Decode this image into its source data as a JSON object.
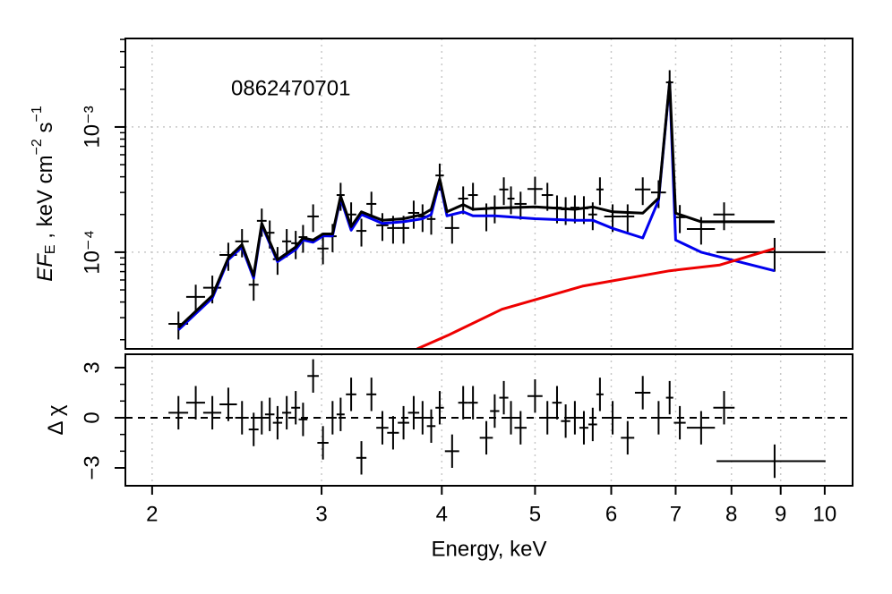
{
  "chart_data": [
    {
      "type": "errorbar",
      "annotation": "0862470701",
      "ylabel": [
        "EF",
        "E",
        " , keV cm",
        "−2",
        " s",
        "−1"
      ],
      "xlog": true,
      "ylog": true,
      "grid": true,
      "xlim": [
        1.876,
        10.69
      ],
      "ylim": [
        1.69e-05,
        0.00509
      ],
      "xticks": [
        2,
        3,
        4,
        5,
        6,
        7,
        8,
        9,
        10
      ],
      "yticks": [
        {
          "value": 0.001,
          "label": "10⁻³"
        },
        {
          "value": 0.0001,
          "label": "10⁻⁴"
        }
      ],
      "yminorticks": [
        2e-05,
        3e-05,
        4e-05,
        5e-05,
        6e-05,
        7e-05,
        8e-05,
        9e-05,
        0.0002,
        0.0003,
        0.0004,
        0.0005,
        0.0006,
        0.0007,
        0.0008,
        0.0009,
        0.002,
        0.003,
        0.004,
        0.005
      ],
      "series": [
        {
          "style": "errorbar",
          "color": "#000000",
          "x": [
            2.13,
            2.22,
            2.31,
            2.4,
            2.48,
            2.55,
            2.6,
            2.65,
            2.7,
            2.76,
            2.82,
            2.87,
            2.94,
            3.01,
            3.08,
            3.14,
            3.22,
            3.3,
            3.38,
            3.47,
            3.56,
            3.65,
            3.74,
            3.82,
            3.9,
            3.98,
            4.1,
            4.21,
            4.31,
            4.45,
            4.54,
            4.64,
            4.72,
            4.83,
            5.0,
            5.15,
            5.27,
            5.38,
            5.5,
            5.62,
            5.74,
            5.84,
            6.02,
            6.24,
            6.47,
            6.72,
            6.9,
            7.07,
            7.44,
            7.86,
            8.87
          ],
          "xerr": [
            0.05,
            0.05,
            0.05,
            0.05,
            0.04,
            0.03,
            0.03,
            0.03,
            0.03,
            0.03,
            0.03,
            0.03,
            0.04,
            0.04,
            0.03,
            0.03,
            0.04,
            0.04,
            0.04,
            0.05,
            0.05,
            0.05,
            0.05,
            0.04,
            0.04,
            0.04,
            0.07,
            0.05,
            0.05,
            0.07,
            0.05,
            0.05,
            0.04,
            0.07,
            0.09,
            0.07,
            0.06,
            0.06,
            0.06,
            0.06,
            0.06,
            0.05,
            0.12,
            0.1,
            0.12,
            0.12,
            0.06,
            0.1,
            0.25,
            0.2,
            1.15
          ],
          "values": [
            2.68e-05,
            4.4e-05,
            5.2e-05,
            9.5e-05,
            0.000122,
            5.5e-05,
            0.000178,
            0.000143,
            8.8e-05,
            0.000122,
            0.000118,
            0.000132,
            0.000193,
            0.000107,
            0.000134,
            0.000286,
            0.0002,
            0.000148,
            0.000243,
            0.000164,
            0.000156,
            0.000156,
            0.000206,
            0.000193,
            0.000184,
            0.00041,
            0.000156,
            0.000268,
            0.000286,
            0.000196,
            0.000227,
            0.000317,
            0.000268,
            0.000243,
            0.00032,
            0.000286,
            0.000227,
            0.00022,
            0.000227,
            0.000224,
            0.0002,
            0.000317,
            0.000193,
            0.000193,
            0.000317,
            0.0003,
            0.00227,
            0.00019,
            0.000153,
            0.0002,
            0.0001
          ],
          "yerr": [
            6.7e-06,
            1.1e-05,
            1.3e-05,
            2.4e-05,
            3.1e-05,
            1.4e-05,
            4.5e-05,
            3.6e-05,
            2.2e-05,
            3.1e-05,
            3e-05,
            3.3e-05,
            4.8e-05,
            2.7e-05,
            3.4e-05,
            7.2e-05,
            5e-05,
            3.7e-05,
            6.1e-05,
            4.1e-05,
            3.9e-05,
            3.9e-05,
            5.2e-05,
            4.8e-05,
            4.6e-05,
            0.0001,
            3.9e-05,
            6.7e-05,
            7.2e-05,
            4.9e-05,
            5.7e-05,
            7.9e-05,
            6.7e-05,
            6.1e-05,
            8e-05,
            7.2e-05,
            5.7e-05,
            5.5e-05,
            5.7e-05,
            5.6e-05,
            5e-05,
            7.9e-05,
            4.8e-05,
            4.8e-05,
            7.9e-05,
            7.5e-05,
            0.00057,
            4.8e-05,
            3.8e-05,
            5e-05,
            3e-05
          ]
        },
        {
          "style": "line",
          "color": "#0000ee",
          "x": [
            2.13,
            2.31,
            2.4,
            2.48,
            2.55,
            2.6,
            2.7,
            2.82,
            2.87,
            2.94,
            3.01,
            3.08,
            3.14,
            3.22,
            3.3,
            3.38,
            3.47,
            3.65,
            3.82,
            3.9,
            3.98,
            4.05,
            4.21,
            4.31,
            4.54,
            5.0,
            5.5,
            5.74,
            6.02,
            6.47,
            6.72,
            6.9,
            7.0,
            7.44,
            8.87
          ],
          "values": [
            2.4e-05,
            4.3e-05,
            8.7e-05,
            0.00011,
            6.2e-05,
            0.000165,
            8.4e-05,
            0.000105,
            0.000125,
            0.00012,
            0.000135,
            0.000135,
            0.00027,
            0.00015,
            0.0002,
            0.000185,
            0.00017,
            0.000175,
            0.000185,
            0.0002,
            0.00037,
            0.000195,
            0.00021,
            0.000195,
            0.000195,
            0.000185,
            0.00018,
            0.00018,
            0.000155,
            0.00013,
            0.00026,
            0.00225,
            0.000125,
            0.0001,
            7.1e-05
          ]
        },
        {
          "style": "line",
          "color": "#ee0000",
          "x": [
            3.77,
            4.06,
            4.62,
            5.6,
            6.9,
            7.78,
            8.87
          ],
          "values": [
            1.69e-05,
            2.17e-05,
            3.5e-05,
            5.35e-05,
            7.1e-05,
            7.9e-05,
            0.000107
          ]
        },
        {
          "style": "line",
          "color": "#000000",
          "x": [
            2.13,
            2.31,
            2.4,
            2.48,
            2.55,
            2.6,
            2.7,
            2.82,
            2.87,
            2.94,
            3.01,
            3.08,
            3.14,
            3.22,
            3.3,
            3.38,
            3.47,
            3.65,
            3.82,
            3.9,
            3.98,
            4.05,
            4.21,
            4.31,
            4.54,
            5.0,
            5.5,
            5.74,
            6.02,
            6.47,
            6.72,
            6.9,
            7.0,
            7.44,
            8.87
          ],
          "values": [
            2.5e-05,
            4.5e-05,
            9e-05,
            0.000115,
            6.5e-05,
            0.00017,
            8.7e-05,
            0.00011,
            0.00013,
            0.000125,
            0.00014,
            0.00014,
            0.00028,
            0.00016,
            0.00021,
            0.000195,
            0.00018,
            0.000185,
            0.0002,
            0.00022,
            0.000385,
            0.00021,
            0.00024,
            0.00022,
            0.000225,
            0.00023,
            0.00022,
            0.00023,
            0.00021,
            0.000205,
            0.00027,
            0.0023,
            0.000205,
            0.000175,
            0.000175
          ]
        }
      ]
    },
    {
      "type": "errorbar",
      "xlabel": "Energy, keV",
      "ylabel": [
        "Δ χ"
      ],
      "xlog": true,
      "ylog": false,
      "grid": true,
      "xlim": [
        1.876,
        10.69
      ],
      "ylim": [
        -4.07,
        3.8
      ],
      "xticks": [
        2,
        3,
        4,
        5,
        6,
        7,
        8,
        9,
        10
      ],
      "yticks": [
        {
          "value": -3,
          "label": "−3"
        },
        0,
        3
      ],
      "yminorticks": [
        -2,
        -1,
        1,
        2
      ],
      "reference_line": 0,
      "series": [
        {
          "style": "errorbar",
          "color": "#000000",
          "x": [
            2.13,
            2.22,
            2.31,
            2.4,
            2.48,
            2.55,
            2.6,
            2.65,
            2.7,
            2.76,
            2.82,
            2.87,
            2.94,
            3.01,
            3.08,
            3.14,
            3.22,
            3.3,
            3.38,
            3.47,
            3.56,
            3.65,
            3.74,
            3.82,
            3.9,
            3.98,
            4.1,
            4.21,
            4.31,
            4.45,
            4.54,
            4.64,
            4.72,
            4.83,
            5.0,
            5.15,
            5.27,
            5.38,
            5.5,
            5.62,
            5.74,
            5.84,
            6.02,
            6.24,
            6.47,
            6.72,
            6.9,
            7.07,
            7.44,
            7.86,
            8.87
          ],
          "xerr": [
            0.05,
            0.05,
            0.05,
            0.05,
            0.04,
            0.03,
            0.03,
            0.03,
            0.03,
            0.03,
            0.03,
            0.03,
            0.04,
            0.04,
            0.03,
            0.03,
            0.04,
            0.04,
            0.04,
            0.05,
            0.05,
            0.05,
            0.05,
            0.04,
            0.04,
            0.04,
            0.07,
            0.05,
            0.05,
            0.07,
            0.05,
            0.05,
            0.04,
            0.07,
            0.09,
            0.07,
            0.06,
            0.06,
            0.06,
            0.06,
            0.06,
            0.05,
            0.12,
            0.1,
            0.12,
            0.12,
            0.06,
            0.1,
            0.25,
            0.2,
            1.15
          ],
          "values": [
            0.3,
            0.9,
            0.3,
            0.8,
            0.0,
            -0.7,
            0.0,
            0.2,
            -0.3,
            0.3,
            0.6,
            -0.1,
            2.5,
            -1.5,
            0.0,
            0.2,
            1.4,
            -2.4,
            1.4,
            -0.6,
            -0.9,
            -0.3,
            0.3,
            0.0,
            -0.5,
            0.6,
            -2.0,
            0.9,
            0.9,
            -1.2,
            0.4,
            1.2,
            0.0,
            -0.6,
            1.3,
            0.0,
            0.9,
            -0.2,
            0.0,
            -0.6,
            -0.4,
            1.4,
            0.0,
            -1.2,
            1.5,
            0.0,
            1.2,
            -0.3,
            -0.6,
            0.6,
            -2.6
          ],
          "yerr": [
            1,
            1,
            1,
            1,
            1,
            1,
            1,
            1,
            1,
            1,
            1,
            1,
            1,
            1,
            1,
            1,
            1,
            1,
            1,
            1,
            1,
            1,
            1,
            1,
            1,
            1,
            1,
            1,
            1,
            1,
            1,
            1,
            1,
            1,
            1,
            1,
            1,
            1,
            1,
            1,
            1,
            1,
            1,
            1,
            1,
            1,
            1,
            1,
            1,
            1,
            1
          ]
        }
      ]
    }
  ]
}
